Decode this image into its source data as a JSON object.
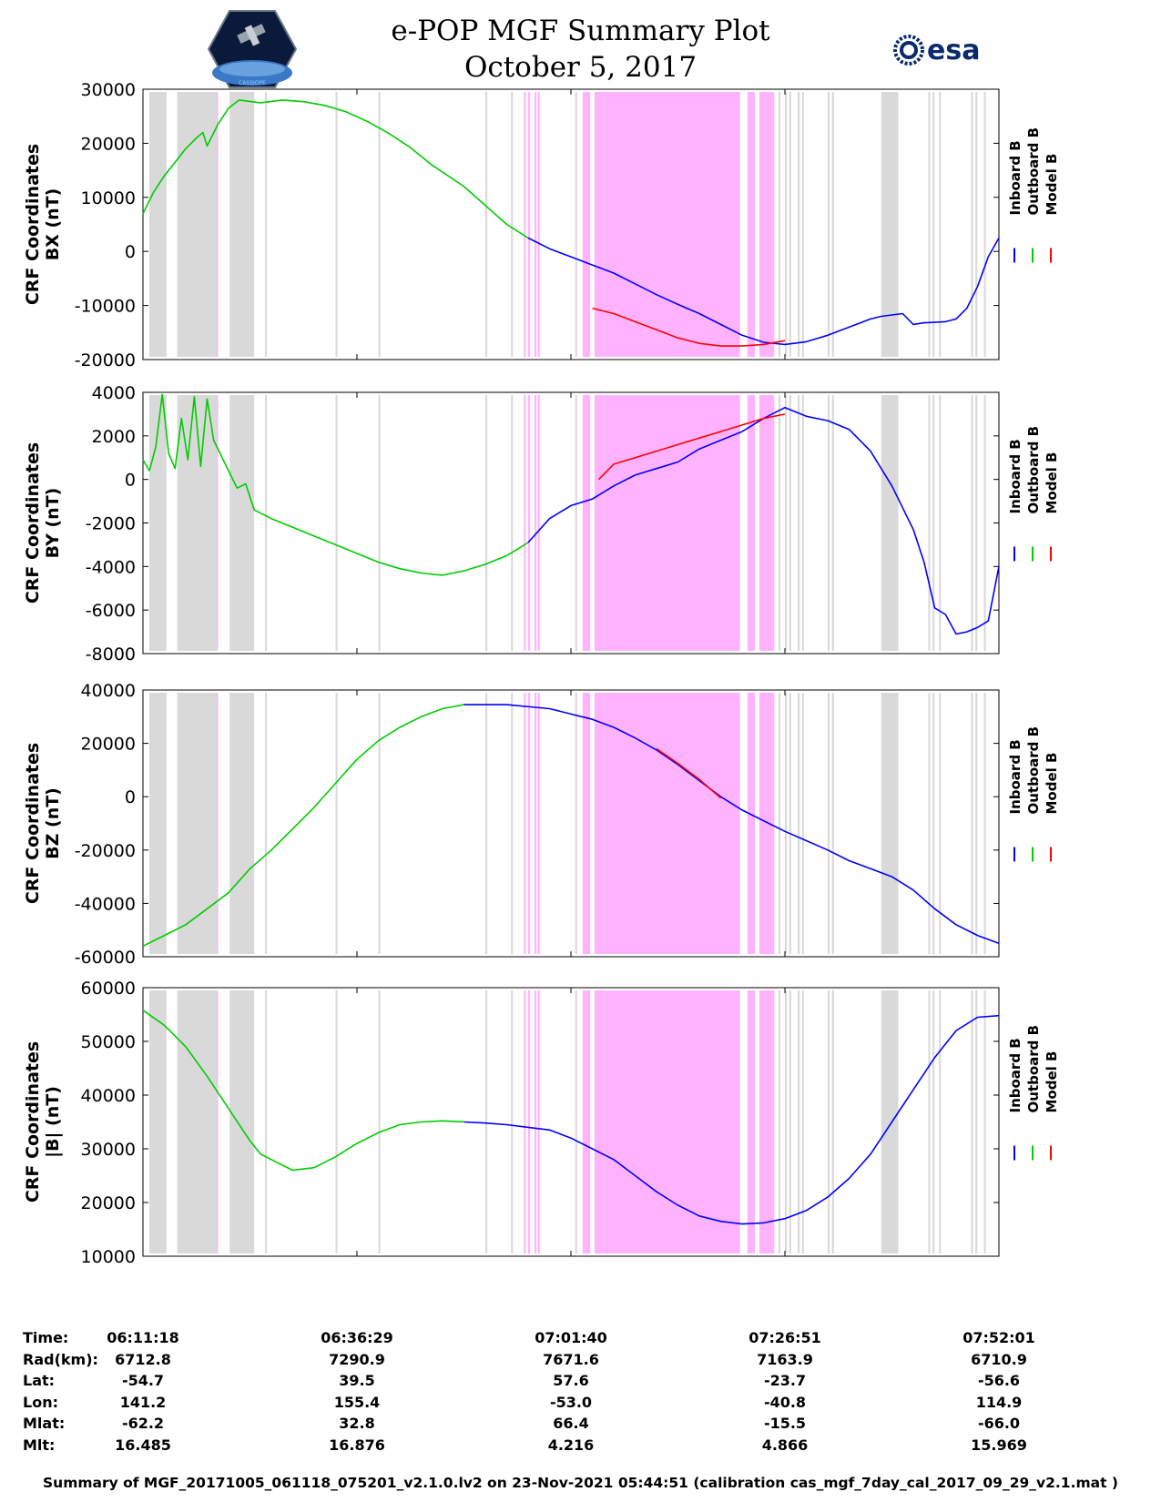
{
  "header": {
    "title_line1": "e-POP MGF Summary Plot",
    "title_line2": "October 5, 2017",
    "logo_left_caption": "CASSIOPE",
    "logo_right_text": "esa"
  },
  "colors": {
    "inboard": "#0000ff",
    "outboard": "#00cc00",
    "model": "#ff0000",
    "gray_band": "#d9d9d9",
    "pink_band": "#ffb3ff"
  },
  "legend_labels": [
    "Inboard B",
    "Outboard B",
    "Model B"
  ],
  "chart_data": [
    {
      "type": "line",
      "ylabel_line1": "CRF Coordinates",
      "ylabel_line2": "BX (nT)",
      "ylim": [
        -20000,
        30000
      ],
      "yticks": [
        30000,
        20000,
        10000,
        0,
        -10000,
        -20000
      ],
      "series": [
        {
          "name": "Outboard B",
          "color": "outboard",
          "x": [
            0,
            5,
            10,
            15,
            20,
            25,
            28,
            30,
            35,
            40,
            45,
            55,
            65,
            75,
            85,
            95,
            105,
            115,
            125,
            135,
            150
          ],
          "y": [
            7000,
            11000,
            14000,
            16500,
            19000,
            21000,
            22000,
            19500,
            23500,
            26500,
            28000,
            27500,
            28000,
            27700,
            27000,
            25800,
            24000,
            21800,
            19200,
            16000,
            12000
          ]
        },
        {
          "name": "Outboard B",
          "color": "outboard",
          "x": [
            150,
            160,
            170,
            180
          ],
          "y": [
            12000,
            8500,
            5000,
            2500
          ]
        },
        {
          "name": "Inboard B",
          "color": "inboard",
          "x": [
            180,
            190,
            200,
            210,
            220,
            230,
            240,
            250,
            260,
            270,
            280,
            290,
            300,
            310,
            320,
            330,
            340,
            345,
            355,
            360,
            365,
            375,
            380,
            385,
            390
          ],
          "y": [
            2500,
            500,
            -1000,
            -2500,
            -4000,
            -6000,
            -8000,
            -9800,
            -11500,
            -13500,
            -15500,
            -16800,
            -17200,
            -16700,
            -15500,
            -14000,
            -12500,
            -12000,
            -11500,
            -13500,
            -13200,
            -13000,
            -12500,
            -10500,
            -6500
          ]
        },
        {
          "name": "Inboard B",
          "color": "inboard",
          "x": [
            390,
            395,
            400
          ],
          "y": [
            -6500,
            -1000,
            2500
          ]
        },
        {
          "name": "Model B",
          "color": "model",
          "x": [
            210,
            220,
            230,
            240,
            250,
            260,
            270,
            280,
            290,
            300
          ],
          "y": [
            -10500,
            -11500,
            -13000,
            -14500,
            -16000,
            -17000,
            -17500,
            -17500,
            -17200,
            -16500
          ]
        }
      ]
    },
    {
      "type": "line",
      "ylabel_line1": "CRF Coordinates",
      "ylabel_line2": "BY (nT)",
      "ylim": [
        -8000,
        4000
      ],
      "yticks": [
        4000,
        2000,
        0,
        -2000,
        -4000,
        -6000,
        -8000
      ],
      "series": [
        {
          "name": "Outboard B",
          "color": "outboard",
          "x": [
            0,
            3,
            6,
            9,
            12,
            15,
            18,
            21,
            24,
            27,
            30,
            33,
            36,
            40,
            44,
            48,
            52,
            56,
            60,
            70,
            80,
            90,
            100,
            110,
            120,
            130,
            140,
            150,
            160,
            170,
            180
          ],
          "y": [
            900,
            400,
            1500,
            3900,
            1200,
            500,
            2800,
            900,
            3800,
            600,
            3700,
            1800,
            1200,
            400,
            -400,
            -200,
            -1400,
            -1600,
            -1800,
            -2200,
            -2600,
            -3000,
            -3400,
            -3800,
            -4100,
            -4300,
            -4400,
            -4200,
            -3900,
            -3500,
            -2900
          ]
        },
        {
          "name": "Inboard B",
          "color": "inboard",
          "x": [
            180,
            190,
            200,
            210,
            220,
            230,
            240,
            250,
            260,
            270,
            280,
            290,
            300,
            310,
            320,
            330,
            340,
            350,
            360,
            365,
            370,
            375,
            380,
            385,
            390,
            395,
            400
          ],
          "y": [
            -2900,
            -1800,
            -1200,
            -900,
            -300,
            200,
            500,
            800,
            1400,
            1800,
            2200,
            2800,
            3300,
            2900,
            2700,
            2300,
            1300,
            -300,
            -2300,
            -3800,
            -5900,
            -6200,
            -7100,
            -7000,
            -6800,
            -6500,
            -4000
          ]
        },
        {
          "name": "Model B",
          "color": "model",
          "x": [
            213,
            220,
            230,
            240,
            250,
            260,
            270,
            280,
            290,
            300
          ],
          "y": [
            0,
            700,
            1000,
            1300,
            1600,
            1900,
            2200,
            2500,
            2800,
            3000
          ]
        }
      ]
    },
    {
      "type": "line",
      "ylabel_line1": "CRF Coordinates",
      "ylabel_line2": "BZ (nT)",
      "ylim": [
        -60000,
        40000
      ],
      "yticks": [
        40000,
        20000,
        0,
        -20000,
        -40000,
        -60000
      ],
      "series": [
        {
          "name": "Outboard B",
          "color": "outboard",
          "x": [
            0,
            10,
            20,
            30,
            40,
            50,
            60,
            70,
            80,
            90,
            100,
            110,
            120,
            130,
            140,
            150
          ],
          "y": [
            -56000,
            -52000,
            -48000,
            -42000,
            -36000,
            -27000,
            -20000,
            -12000,
            -4000,
            5000,
            14000,
            21000,
            26000,
            30000,
            33000,
            34500
          ]
        },
        {
          "name": "Inboard B",
          "color": "inboard",
          "x": [
            150,
            170,
            190,
            200,
            210,
            220,
            230,
            240,
            250,
            260,
            270,
            280,
            290,
            300,
            310,
            320,
            330,
            340,
            350,
            360,
            370,
            380,
            390,
            400
          ],
          "y": [
            34500,
            34500,
            33000,
            31000,
            29000,
            26000,
            22000,
            17500,
            12000,
            6000,
            0,
            -5000,
            -9000,
            -13000,
            -16500,
            -20000,
            -24000,
            -27000,
            -30000,
            -35000,
            -42000,
            -48000,
            -52000,
            -55000
          ]
        },
        {
          "name": "Model B",
          "color": "model",
          "x": [
            240,
            250,
            260,
            270
          ],
          "y": [
            18000,
            12500,
            6500,
            -500
          ]
        }
      ]
    },
    {
      "type": "line",
      "ylabel_line1": "CRF Coordinates",
      "ylabel_line2": "|B| (nT)",
      "ylim": [
        10000,
        60000
      ],
      "yticks": [
        60000,
        50000,
        40000,
        30000,
        20000,
        10000
      ],
      "series": [
        {
          "name": "Outboard B",
          "color": "outboard",
          "x": [
            0,
            10,
            20,
            30,
            40,
            50,
            55,
            60,
            70,
            80,
            90,
            100,
            110,
            120,
            130,
            140,
            150
          ],
          "y": [
            55800,
            53000,
            49000,
            43500,
            37500,
            31500,
            29000,
            28000,
            26000,
            26500,
            28500,
            31000,
            33000,
            34500,
            35000,
            35200,
            35000
          ]
        },
        {
          "name": "Inboard B",
          "color": "inboard",
          "x": [
            150,
            160,
            170,
            180,
            190,
            200,
            210,
            220,
            230,
            240,
            250,
            260,
            270,
            280,
            290,
            300,
            310,
            320,
            330,
            340,
            350,
            360,
            370,
            380,
            390,
            400
          ],
          "y": [
            35000,
            34800,
            34500,
            34000,
            33500,
            32000,
            30000,
            28000,
            25000,
            22000,
            19500,
            17500,
            16500,
            16000,
            16200,
            17000,
            18500,
            21000,
            24500,
            29000,
            35000,
            41000,
            47000,
            52000,
            54500,
            54800
          ]
        },
        {
          "name": "Model B",
          "color": "model",
          "x": [],
          "y": []
        }
      ]
    }
  ],
  "footer": {
    "rows": [
      {
        "label": "Time:",
        "values": [
          "06:11:18",
          "06:36:29",
          "07:01:40",
          "07:26:51",
          "07:52:01"
        ]
      },
      {
        "label": "Rad(km):",
        "values": [
          "6712.8",
          "7290.9",
          "7671.6",
          "7163.9",
          "6710.9"
        ]
      },
      {
        "label": "Lat:",
        "values": [
          "-54.7",
          "39.5",
          "57.6",
          "-23.7",
          "-56.6"
        ]
      },
      {
        "label": "Lon:",
        "values": [
          "141.2",
          "155.4",
          "-53.0",
          "-40.8",
          "114.9"
        ]
      },
      {
        "label": "Mlat:",
        "values": [
          "-62.2",
          "32.8",
          "66.4",
          "-15.5",
          "-66.0"
        ]
      },
      {
        "label": "Mlt:",
        "values": [
          "16.485",
          "16.876",
          "4.216",
          "4.866",
          "15.969"
        ]
      }
    ],
    "note": "Summary of MGF_20171005_061118_075201_v2.1.0.lv2 on 23-Nov-2021 05:44:51 (calibration cas_mgf_7day_cal_2017_09_29_v2.1.mat )"
  }
}
